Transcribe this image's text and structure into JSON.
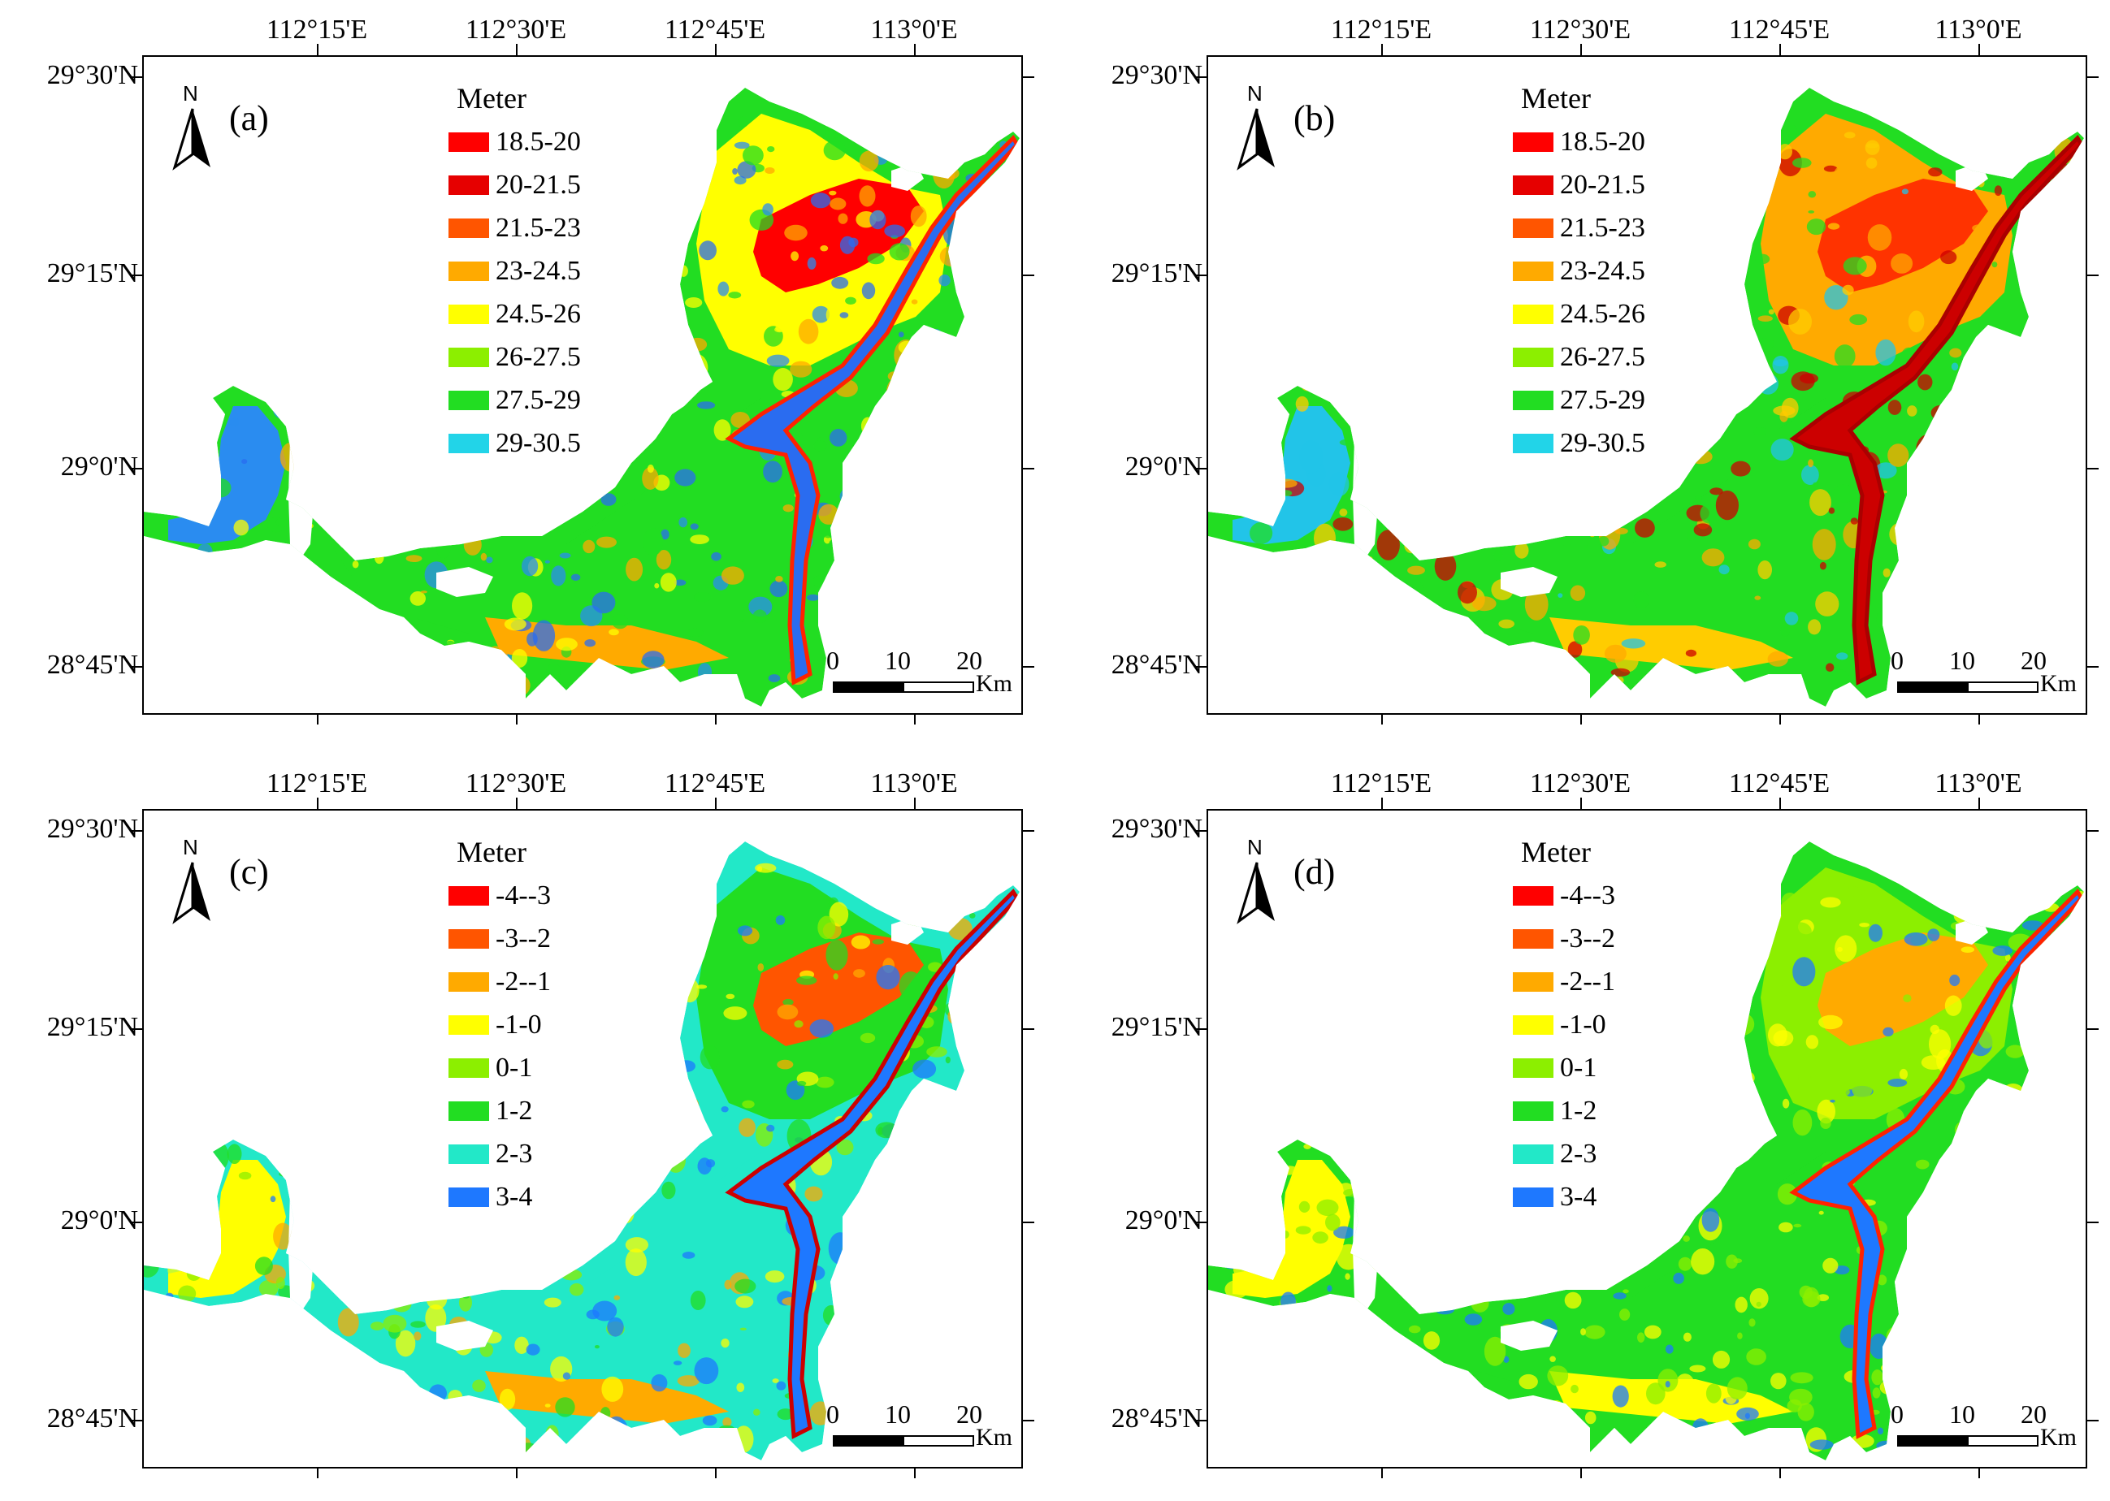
{
  "longitude_labels": [
    "112°15'E",
    "112°30'E",
    "112°45'E",
    "113°0'E"
  ],
  "latitude_labels": [
    "29°30'N",
    "29°15'N",
    "29°0'N",
    "28°45'N"
  ],
  "north_arrow": {
    "letter": "N",
    "icon": "north-arrow-icon"
  },
  "scale_bar": {
    "labels": [
      "0",
      "10",
      "20"
    ],
    "unit": "Km"
  },
  "legend_elevation": {
    "title": "Meter",
    "classes": [
      {
        "label": "18.5-20",
        "color": "#ff0000"
      },
      {
        "label": "20-21.5",
        "color": "#e60000"
      },
      {
        "label": "21.5-23",
        "color": "#ff5500"
      },
      {
        "label": "23-24.5",
        "color": "#ffaa00"
      },
      {
        "label": "24.5-26",
        "color": "#ffff00"
      },
      {
        "label": "26-27.5",
        "color": "#8cef00"
      },
      {
        "label": "27.5-29",
        "color": "#22dd22"
      },
      {
        "label": "29-30.5",
        "color": "#22d4e8"
      }
    ]
  },
  "legend_difference": {
    "title": "Meter",
    "classes": [
      {
        "label": "-4--3",
        "color": "#ff0000"
      },
      {
        "label": "-3--2",
        "color": "#ff5500"
      },
      {
        "label": "-2--1",
        "color": "#ffaa00"
      },
      {
        "label": "-1-0",
        "color": "#ffff00"
      },
      {
        "label": "0-1",
        "color": "#8cef00"
      },
      {
        "label": "1-2",
        "color": "#22dd22"
      },
      {
        "label": "2-3",
        "color": "#22e8c8"
      },
      {
        "label": "3-4",
        "color": "#1e78ff"
      }
    ]
  },
  "panels": [
    {
      "id": "a",
      "label": "(a)",
      "legend": "legend_elevation",
      "fill": {
        "west": "#2a8cf0",
        "west_inner": "#22dd22",
        "mid": "#22dd22",
        "mid_low": "#ffaa00",
        "east": "#ffff00",
        "east_hot": "#ff0000",
        "river": "#2a6cf0",
        "river_edge": "#ff2200"
      }
    },
    {
      "id": "b",
      "label": "(b)",
      "legend": "legend_elevation",
      "fill": {
        "west": "#22c4e8",
        "west_inner": "#22dd22",
        "mid": "#22dd22",
        "mid_low": "#ffcc00",
        "east": "#ffaa00",
        "east_hot": "#ff3300",
        "river": "#cc0000",
        "river_edge": "#aa0000"
      }
    },
    {
      "id": "c",
      "label": "(c)",
      "legend": "legend_difference",
      "fill": {
        "west": "#ffff00",
        "west_inner": "#8cef00",
        "mid": "#22e8c8",
        "mid_low": "#ffaa00",
        "east": "#22dd22",
        "east_hot": "#ff5500",
        "river": "#1e78ff",
        "river_edge": "#cc0000"
      }
    },
    {
      "id": "d",
      "label": "(d)",
      "legend": "legend_difference",
      "fill": {
        "west": "#ffff00",
        "west_inner": "#8cef00",
        "mid": "#22dd22",
        "mid_low": "#ffff00",
        "east": "#8cef00",
        "east_hot": "#ffaa00",
        "river": "#1e78ff",
        "river_edge": "#ff2200"
      }
    }
  ]
}
